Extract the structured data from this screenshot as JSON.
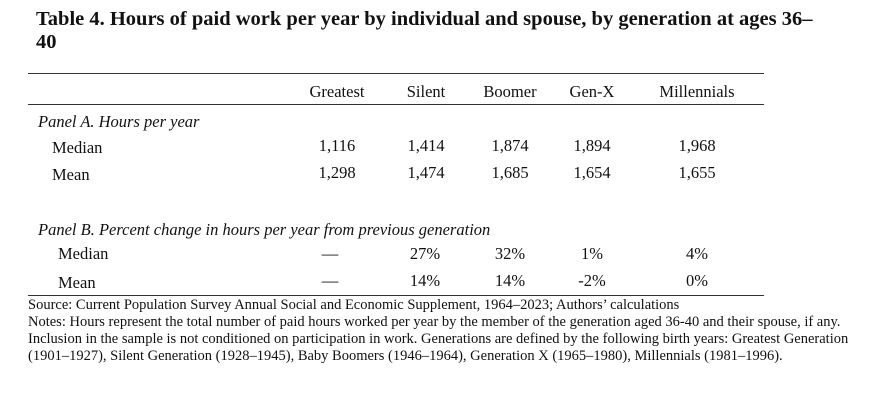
{
  "title": "Table 4. Hours of paid work per year by individual and spouse, by generation at ages 36–40",
  "columns": [
    "Greatest",
    "Silent",
    "Boomer",
    "Gen-X",
    "Millennials"
  ],
  "panelA": {
    "label": "Panel A. Hours per year",
    "rows": [
      {
        "label": "Median",
        "values": [
          "1,116",
          "1,414",
          "1,874",
          "1,894",
          "1,968"
        ]
      },
      {
        "label": "Mean",
        "values": [
          "1,298",
          "1,474",
          "1,685",
          "1,654",
          "1,655"
        ]
      }
    ]
  },
  "panelB": {
    "label": "Panel B. Percent change in hours per year from previous generation",
    "rows": [
      {
        "label": "Median",
        "values": [
          "—",
          "27%",
          "32%",
          "1%",
          "4%"
        ]
      },
      {
        "label": "Mean",
        "values": [
          "—",
          "14%",
          "14%",
          "-2%",
          "0%"
        ]
      }
    ]
  },
  "source": "Source: Current Population Survey Annual Social and Economic Supplement, 1964–2023; Authors’ calculations",
  "notes": "Notes: Hours represent the total number of paid hours worked per year by the member of the generation aged 36-40 and their spouse, if any. Inclusion in the sample is not conditioned on participation in work. Generations are defined by the following birth years: Greatest Generation (1901–1927), Silent Generation (1928–1945), Baby Boomers (1946–1964), Generation X (1965–1980), Millennials (1981–1996)."
}
